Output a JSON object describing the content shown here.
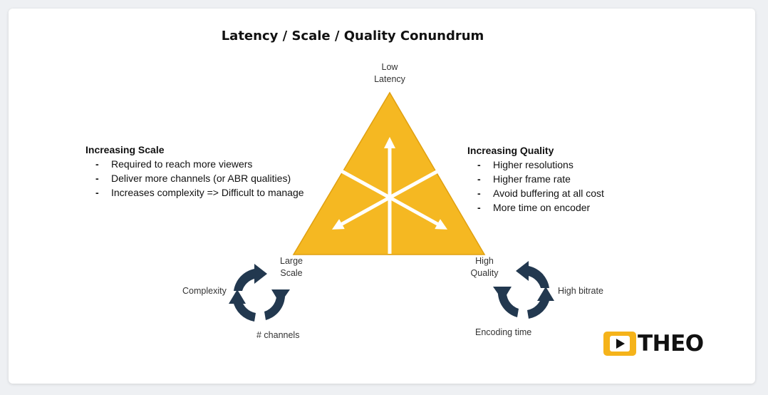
{
  "title": "Latency / Scale / Quality Conundrum",
  "vertices": {
    "top": [
      "Low",
      "Latency"
    ],
    "left": [
      "Large",
      "Scale"
    ],
    "right": [
      "High",
      "Quality"
    ]
  },
  "scale_block": {
    "heading": "Increasing Scale",
    "items": [
      "Required to reach more viewers",
      "Deliver more channels (or ABR qualities)",
      "Increases complexity => Difficult to manage"
    ]
  },
  "quality_block": {
    "heading": "Increasing Quality",
    "items": [
      "Higher resolutions",
      "Higher frame rate",
      "Avoid buffering at all cost",
      "More time on encoder"
    ]
  },
  "left_cycle": {
    "labels": [
      "Complexity",
      "# channels"
    ]
  },
  "right_cycle": {
    "labels": [
      "High bitrate",
      "Encoding time"
    ]
  },
  "logo": {
    "text": "THEO"
  },
  "colors": {
    "triangle": "#f5b822",
    "triangle_stroke": "#e0a010",
    "cycle": "#22384f",
    "logo": "#f5b31a"
  }
}
